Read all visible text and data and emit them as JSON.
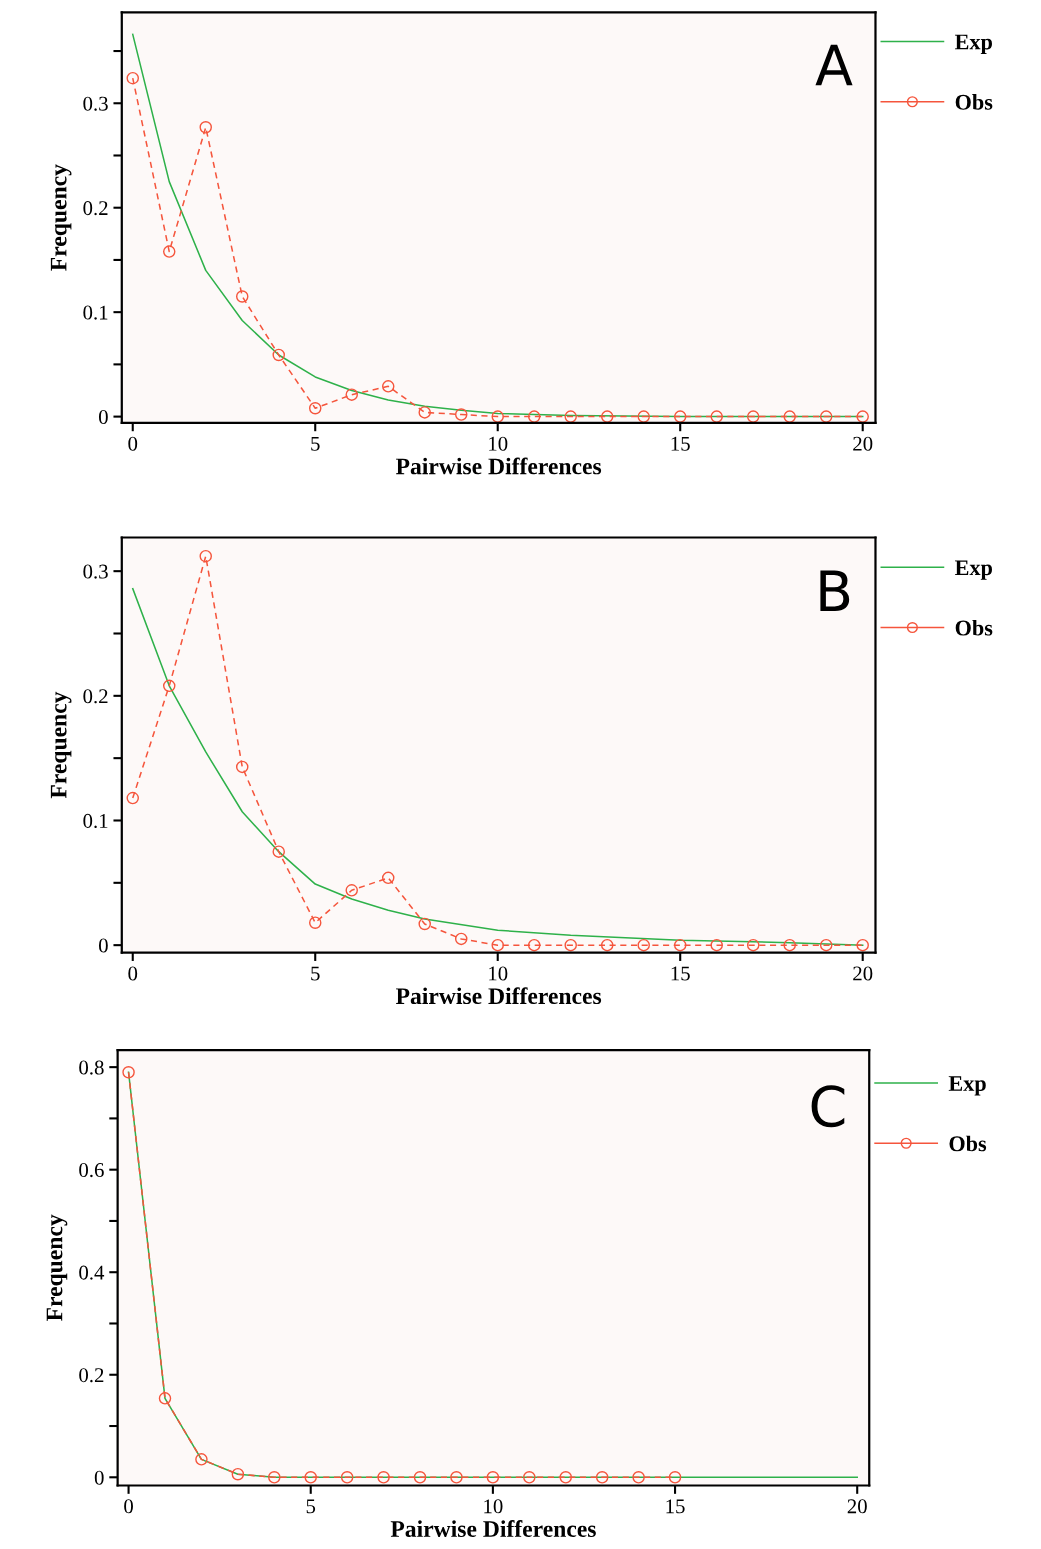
{
  "chart_data": [
    {
      "type": "line",
      "xlabel": "Pairwise Differences",
      "ylabel": "Frequency",
      "annotations": [
        "A"
      ],
      "xlim": [
        -0.3,
        20.35
      ],
      "ylim": [
        -0.006,
        0.387
      ],
      "xticks": [
        0,
        5,
        10,
        15,
        20
      ],
      "yticks": [
        0,
        {
          "value": 0.05,
          "label": null
        },
        0.1,
        {
          "value": 0.15,
          "label": null
        },
        0.2,
        {
          "value": 0.25,
          "label": null
        },
        0.3,
        {
          "value": 0.35,
          "label": null
        }
      ],
      "grid": false,
      "legend": "right",
      "series": [
        {
          "name": "Exp",
          "color": "#2eb14a",
          "marker": "none",
          "line_style": "solid",
          "x": [
            0,
            1,
            2,
            3,
            4,
            5,
            6,
            7,
            8,
            9,
            10,
            12,
            15,
            20
          ],
          "values": [
            0.366,
            0.225,
            0.14,
            0.092,
            0.059,
            0.038,
            0.025,
            0.016,
            0.01,
            0.006,
            0.003,
            0.001,
            0,
            0
          ]
        },
        {
          "name": "Obs",
          "color": "#f5553c",
          "marker": "circle",
          "line_style": "dashed",
          "x": [
            0,
            1,
            2,
            3,
            4,
            5,
            6,
            7,
            8,
            9,
            10,
            11,
            12,
            13,
            14,
            15,
            16,
            17,
            18,
            19,
            20
          ],
          "values": [
            0.324,
            0.158,
            0.277,
            0.115,
            0.059,
            0.008,
            0.021,
            0.029,
            0.004,
            0.002,
            0,
            0,
            0,
            0,
            0,
            0,
            0,
            0,
            0,
            0,
            0
          ]
        }
      ]
    },
    {
      "type": "line",
      "xlabel": "Pairwise Differences",
      "ylabel": "Frequency",
      "annotations": [
        "B"
      ],
      "xlim": [
        -0.3,
        20.35
      ],
      "ylim": [
        -0.006,
        0.327
      ],
      "xticks": [
        0,
        5,
        10,
        15,
        20
      ],
      "yticks": [
        0,
        {
          "value": 0.05,
          "label": null
        },
        0.1,
        {
          "value": 0.15,
          "label": null
        },
        0.2,
        {
          "value": 0.25,
          "label": null
        },
        0.3
      ],
      "grid": false,
      "legend": "right",
      "series": [
        {
          "name": "Exp",
          "color": "#2eb14a",
          "marker": "none",
          "line_style": "solid",
          "x": [
            0,
            1,
            2,
            3,
            4,
            5,
            6,
            7,
            8,
            10,
            12,
            15,
            18,
            20
          ],
          "values": [
            0.286,
            0.208,
            0.155,
            0.107,
            0.075,
            0.049,
            0.037,
            0.028,
            0.021,
            0.012,
            0.008,
            0.004,
            0.002,
            0
          ]
        },
        {
          "name": "Obs",
          "color": "#f5553c",
          "marker": "circle",
          "line_style": "dashed",
          "x": [
            0,
            1,
            2,
            3,
            4,
            5,
            6,
            7,
            8,
            9,
            10,
            11,
            12,
            13,
            14,
            15,
            16,
            17,
            18,
            19,
            20
          ],
          "values": [
            0.118,
            0.208,
            0.312,
            0.143,
            0.075,
            0.018,
            0.044,
            0.054,
            0.017,
            0.005,
            0,
            0,
            0,
            0,
            0,
            0,
            0,
            0,
            0,
            0,
            0
          ]
        }
      ]
    },
    {
      "type": "line",
      "xlabel": "Pairwise Differences",
      "ylabel": "Frequency",
      "annotations": [
        "C"
      ],
      "xlim": [
        -0.3,
        20.33
      ],
      "ylim": [
        -0.016,
        0.833
      ],
      "xticks": [
        0,
        5,
        10,
        15,
        20
      ],
      "yticks": [
        0,
        {
          "value": 0.1,
          "label": null
        },
        0.2,
        {
          "value": 0.3,
          "label": null
        },
        0.4,
        {
          "value": 0.5,
          "label": null
        },
        0.6,
        {
          "value": 0.7,
          "label": null
        },
        0.8
      ],
      "grid": false,
      "legend": "right",
      "series": [
        {
          "name": "Exp",
          "color": "#2eb14a",
          "marker": "none",
          "line_style": "solid",
          "x": [
            0,
            1,
            2,
            3,
            4,
            20
          ],
          "values": [
            0.79,
            0.154,
            0.035,
            0.006,
            0,
            0
          ]
        },
        {
          "name": "Obs",
          "color": "#f5553c",
          "marker": "circle",
          "line_style": "dashed",
          "x": [
            0,
            1,
            2,
            3,
            4,
            5,
            6,
            7,
            8,
            9,
            10,
            11,
            12,
            13,
            14,
            15
          ],
          "values": [
            0.79,
            0.154,
            0.035,
            0.006,
            0,
            0,
            0,
            0,
            0,
            0,
            0,
            0,
            0,
            0,
            0,
            0
          ]
        }
      ]
    }
  ]
}
